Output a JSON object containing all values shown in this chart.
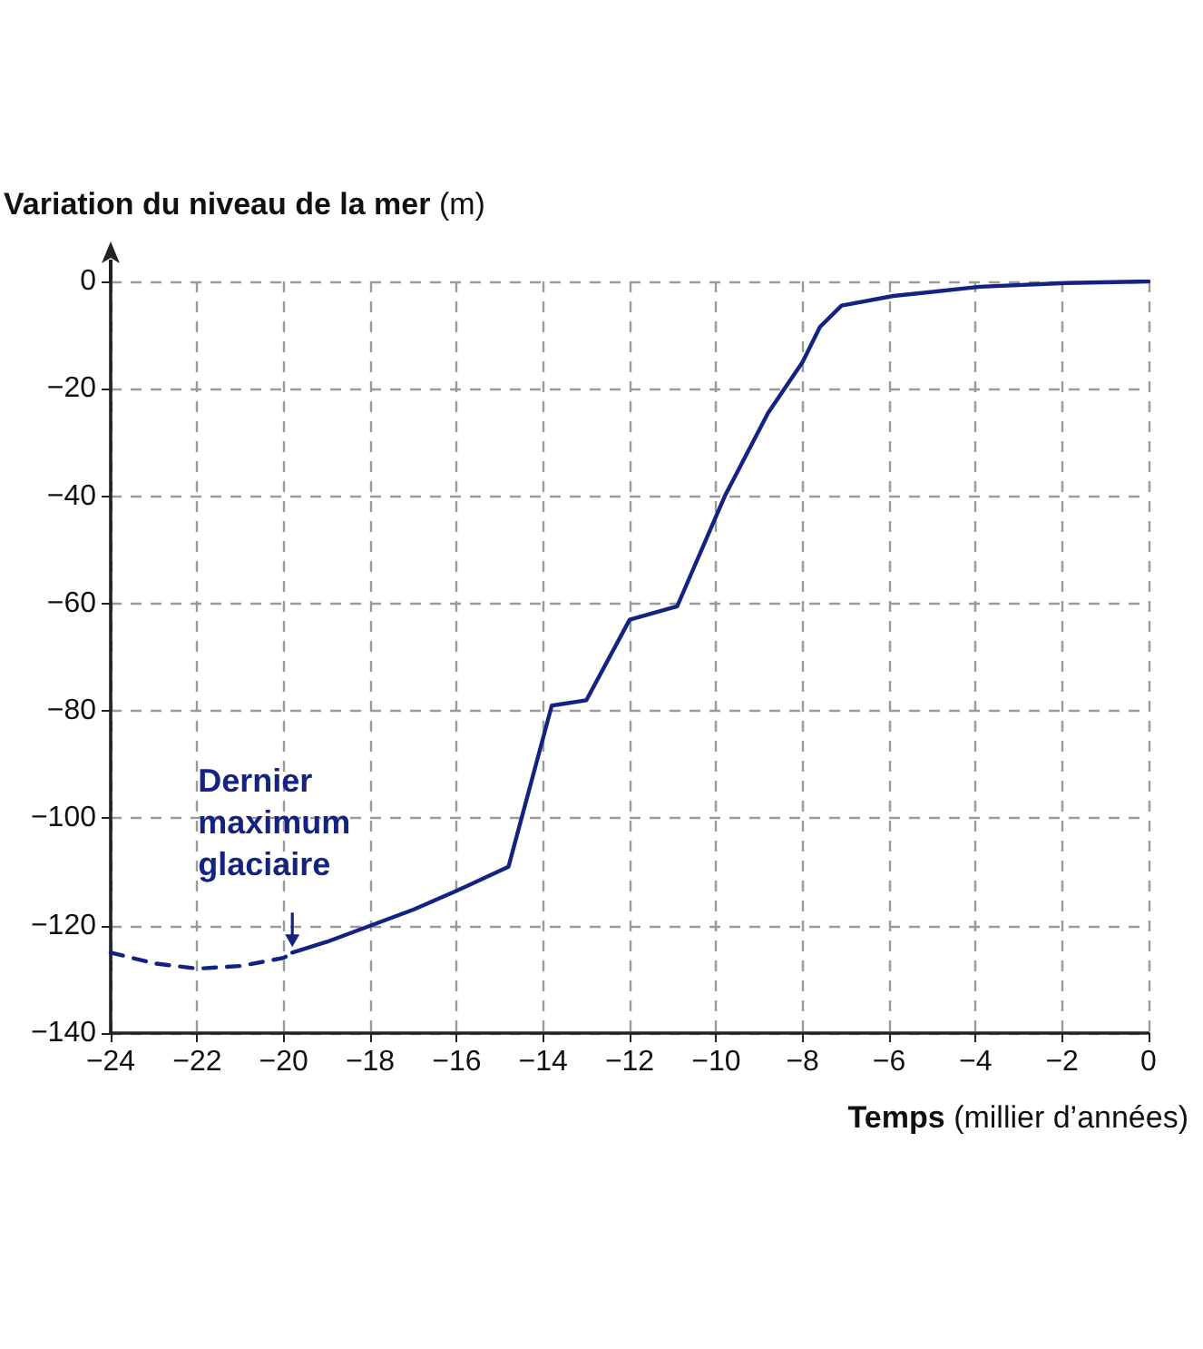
{
  "chart_data": {
    "type": "line",
    "ylabel": "Variation du niveau de la mer (m)",
    "xlabel": "Temps (millier d’années)",
    "xlim": [
      -24,
      0
    ],
    "xticks": [
      -24,
      -22,
      -20,
      -18,
      -16,
      -14,
      -12,
      -10,
      -8,
      -6,
      -4,
      -2,
      0
    ],
    "ylim": [
      -140,
      0
    ],
    "yticks": [
      -140,
      -120,
      -100,
      -80,
      -60,
      -40,
      -20,
      0
    ],
    "grid": true,
    "marker": "none",
    "series": [
      {
        "color": "#142382",
        "line_style": "dashed",
        "x": [
          -24,
          -23,
          -22,
          -21,
          -20,
          -19.8
        ],
        "values": [
          -125,
          -127,
          -128,
          -127.5,
          -126,
          -125
        ]
      },
      {
        "color": "#142382",
        "line_style": "solid",
        "x": [
          -19.8,
          -19,
          -18,
          -17,
          -16,
          -14.8,
          -13.8,
          -13,
          -12,
          -10.9,
          -9.8,
          -8.8,
          -8,
          -7.6,
          -7.1,
          -5.9,
          -3.9,
          -1.9,
          0
        ],
        "values": [
          -125,
          -123,
          -120,
          -117,
          -113.5,
          -109,
          -79,
          -78,
          -63,
          -60.5,
          -40,
          -24.5,
          -15,
          -8.5,
          -4.5,
          -2.7,
          -1,
          -0.3,
          0
        ]
      }
    ],
    "annotations": [
      {
        "text": "Dernier maximum glaciaire",
        "x": -19.8,
        "y": -125
      }
    ]
  }
}
